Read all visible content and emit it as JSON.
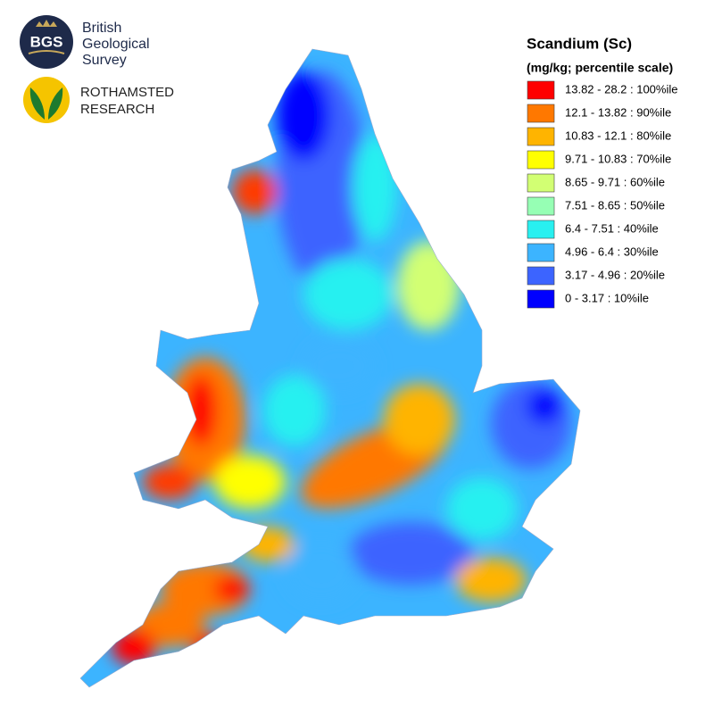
{
  "logos": {
    "bgs": {
      "mark": "BGS",
      "name": [
        "British",
        "Geological",
        "Survey"
      ]
    },
    "rothamsted": {
      "name": [
        "ROTHAMSTED",
        "RESEARCH"
      ]
    }
  },
  "legend": {
    "title": "Scandium (Sc)",
    "subtitle": "(mg/kg; percentile scale)",
    "items": [
      {
        "label": "13.82 - 28.2 : 100%ile",
        "color": "#ff0000"
      },
      {
        "label": "12.1 - 13.82 : 90%ile",
        "color": "#ff7800"
      },
      {
        "label": "10.83 - 12.1 : 80%ile",
        "color": "#ffb400"
      },
      {
        "label": "9.71 - 10.83 : 70%ile",
        "color": "#ffff00"
      },
      {
        "label": "8.65 - 9.71 : 60%ile",
        "color": "#d2ff73"
      },
      {
        "label": "7.51 - 8.65 : 50%ile",
        "color": "#96ffb4"
      },
      {
        "label": "6.4 - 7.51 : 40%ile",
        "color": "#28f0f0"
      },
      {
        "label": "4.96 - 6.4 : 30%ile",
        "color": "#3cb4ff"
      },
      {
        "label": "3.17 - 4.96 : 20%ile",
        "color": "#3c64ff"
      },
      {
        "label": "0 - 3.17 : 10%ile",
        "color": "#0000ff"
      }
    ]
  }
}
